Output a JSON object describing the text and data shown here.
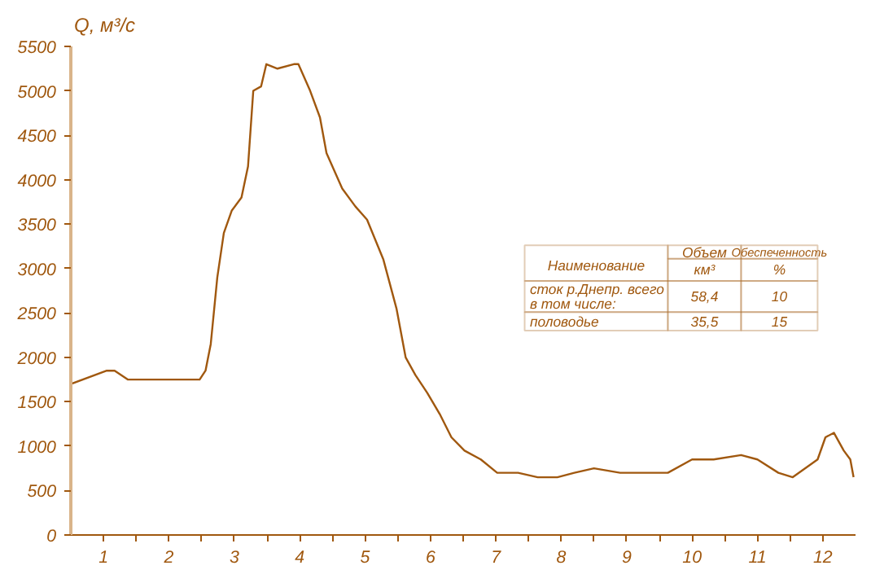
{
  "chart_data": {
    "type": "line",
    "ylabel": "Q, м³/с",
    "x": [
      0,
      0.55,
      0.67,
      0.87,
      1.12,
      1.42,
      1.67,
      1.97,
      2.06,
      2.14,
      2.24,
      2.34,
      2.46,
      2.61,
      2.71,
      2.79,
      2.91,
      2.99,
      3.16,
      3.41,
      3.48,
      3.66,
      3.81,
      3.91,
      4.15,
      4.35,
      4.53,
      4.78,
      4.98,
      5.12,
      5.27,
      5.45,
      5.65,
      5.82,
      6.02,
      6.27,
      6.52,
      6.84,
      7.14,
      7.44,
      7.7,
      8.0,
      8.4,
      8.83,
      9.13,
      9.5,
      9.83,
      10.25,
      10.5,
      10.82,
      11.04,
      11.42,
      11.54,
      11.67,
      11.82,
      11.92,
      11.97
    ],
    "series": [
      {
        "color": "#a0580f",
        "values": [
          1700,
          1850,
          1850,
          1750,
          1750,
          1750,
          1750,
          1750,
          1850,
          2150,
          2900,
          3400,
          3650,
          3800,
          4150,
          5000,
          5050,
          5300,
          5250,
          5300,
          5300,
          5000,
          4700,
          4300,
          3900,
          3700,
          3550,
          3100,
          2550,
          2000,
          1800,
          1600,
          1350,
          1100,
          950,
          850,
          700,
          700,
          650,
          650,
          700,
          750,
          700,
          700,
          700,
          850,
          850,
          900,
          850,
          700,
          650,
          850,
          1100,
          1150,
          950,
          850,
          650
        ]
      }
    ],
    "xlim": [
      0,
      12
    ],
    "xticks": [
      {
        "value": 0.5,
        "label": "1"
      },
      {
        "value": 1,
        "label": null
      },
      {
        "value": 1.5,
        "label": "2"
      },
      {
        "value": 2,
        "label": null
      },
      {
        "value": 2.5,
        "label": "3"
      },
      {
        "value": 3,
        "label": null
      },
      {
        "value": 3.5,
        "label": "4"
      },
      {
        "value": 4,
        "label": null
      },
      {
        "value": 4.5,
        "label": "5"
      },
      {
        "value": 5,
        "label": null
      },
      {
        "value": 5.5,
        "label": "6"
      },
      {
        "value": 6,
        "label": null
      },
      {
        "value": 6.5,
        "label": "7"
      },
      {
        "value": 7,
        "label": null
      },
      {
        "value": 7.5,
        "label": "8"
      },
      {
        "value": 8,
        "label": null
      },
      {
        "value": 8.5,
        "label": "9"
      },
      {
        "value": 9,
        "label": null
      },
      {
        "value": 9.5,
        "label": "10"
      },
      {
        "value": 10,
        "label": null
      },
      {
        "value": 10.5,
        "label": "11"
      },
      {
        "value": 11,
        "label": null
      },
      {
        "value": 11.5,
        "label": "12"
      }
    ],
    "ylim": [
      0,
      5500
    ],
    "yticks": [
      0,
      500,
      1000,
      1500,
      2000,
      2500,
      3000,
      3500,
      4000,
      4500,
      5000,
      5500
    ],
    "grid": false,
    "marker": "none",
    "line_style": "solid",
    "annotations": [
      "Наименование",
      "Объем",
      "км³",
      "Обеспеченность",
      "%",
      "сток р.Днепр. всего",
      "в том числе:",
      "58,4",
      "10",
      "половодье",
      "35,5",
      "15"
    ]
  }
}
